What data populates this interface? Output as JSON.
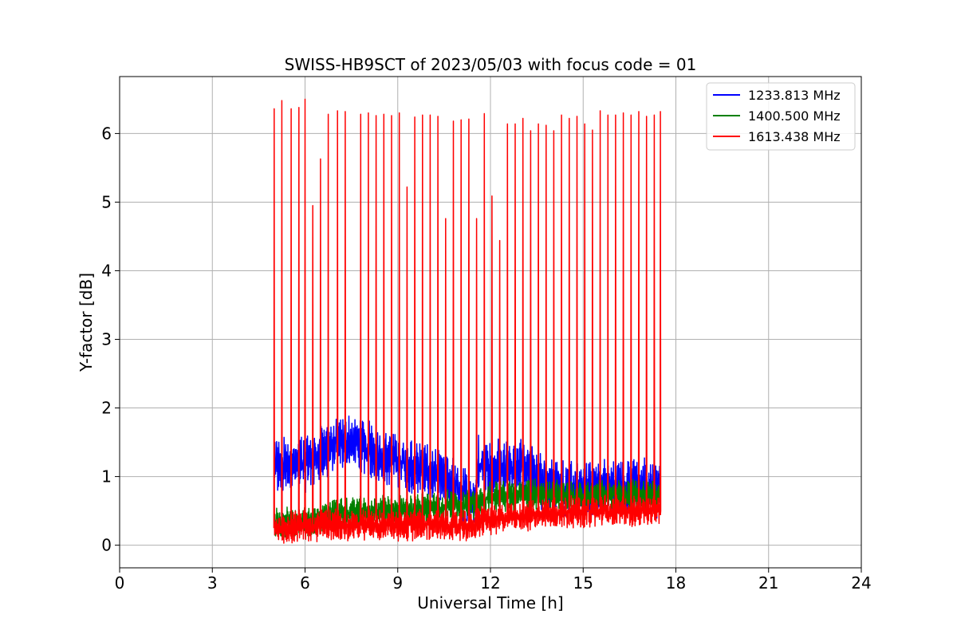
{
  "chart_data": {
    "type": "line",
    "title": "SWISS-HB9SCT of 2023/05/03 with focus code = 01",
    "xlabel": "Universal Time [h]",
    "ylabel": "Y-factor [dB]",
    "xlim": [
      0,
      24
    ],
    "ylim": [
      -0.33,
      6.83
    ],
    "x_ticks": [
      0,
      3,
      6,
      9,
      12,
      15,
      18,
      21,
      24
    ],
    "y_ticks": [
      0,
      1,
      2,
      3,
      4,
      5,
      6
    ],
    "grid": true,
    "legend_position": "top-right",
    "series": [
      {
        "name": "1233.813 MHz",
        "color": "#0000ff",
        "x_range": [
          5.0,
          17.5
        ],
        "baseline_points": [
          [
            5.0,
            1.15
          ],
          [
            6.0,
            1.2
          ],
          [
            7.0,
            1.45
          ],
          [
            7.5,
            1.5
          ],
          [
            8.5,
            1.3
          ],
          [
            9.5,
            1.15
          ],
          [
            10.5,
            0.95
          ],
          [
            11.5,
            0.65
          ],
          [
            11.6,
            1.2
          ],
          [
            12.5,
            1.1
          ],
          [
            13.0,
            1.15
          ],
          [
            13.5,
            0.95
          ],
          [
            14.5,
            0.8
          ],
          [
            15.5,
            0.85
          ],
          [
            16.5,
            0.85
          ],
          [
            17.5,
            0.82
          ]
        ],
        "noise_amplitude": 0.22
      },
      {
        "name": "1400.500 MHz",
        "color": "#008000",
        "x_range": [
          5.0,
          17.5
        ],
        "baseline_points": [
          [
            5.0,
            0.3
          ],
          [
            6.0,
            0.35
          ],
          [
            7.0,
            0.45
          ],
          [
            8.0,
            0.5
          ],
          [
            9.0,
            0.5
          ],
          [
            10.0,
            0.55
          ],
          [
            11.5,
            0.6
          ],
          [
            12.0,
            0.7
          ],
          [
            13.0,
            0.75
          ],
          [
            14.0,
            0.72
          ],
          [
            15.0,
            0.7
          ],
          [
            16.0,
            0.72
          ],
          [
            17.5,
            0.72
          ]
        ],
        "noise_amplitude": 0.12
      },
      {
        "name": "1613.438 MHz",
        "color": "#ff0000",
        "x_range": [
          5.0,
          17.5
        ],
        "baseline_points": [
          [
            5.0,
            0.25
          ],
          [
            6.0,
            0.28
          ],
          [
            7.0,
            0.3
          ],
          [
            8.0,
            0.3
          ],
          [
            9.0,
            0.28
          ],
          [
            10.0,
            0.3
          ],
          [
            11.5,
            0.28
          ],
          [
            11.6,
            0.35
          ],
          [
            12.5,
            0.4
          ],
          [
            13.5,
            0.45
          ],
          [
            14.5,
            0.48
          ],
          [
            15.5,
            0.5
          ],
          [
            16.5,
            0.5
          ],
          [
            17.5,
            0.5
          ]
        ],
        "noise_amplitude": 0.12,
        "spikes": [
          [
            5.0,
            6.36
          ],
          [
            5.25,
            6.48
          ],
          [
            5.55,
            6.36
          ],
          [
            5.8,
            6.38
          ],
          [
            6.0,
            6.5
          ],
          [
            6.25,
            4.95
          ],
          [
            6.5,
            5.63
          ],
          [
            6.75,
            6.28
          ],
          [
            7.05,
            6.33
          ],
          [
            7.3,
            6.32
          ],
          [
            7.8,
            6.28
          ],
          [
            8.05,
            6.3
          ],
          [
            8.3,
            6.26
          ],
          [
            8.55,
            6.28
          ],
          [
            8.8,
            6.26
          ],
          [
            9.05,
            6.3
          ],
          [
            9.3,
            5.22
          ],
          [
            9.55,
            6.24
          ],
          [
            9.8,
            6.27
          ],
          [
            10.05,
            6.27
          ],
          [
            10.3,
            6.25
          ],
          [
            10.55,
            4.76
          ],
          [
            10.8,
            6.18
          ],
          [
            11.05,
            6.2
          ],
          [
            11.3,
            6.21
          ],
          [
            11.55,
            4.76
          ],
          [
            11.8,
            6.29
          ],
          [
            12.05,
            5.09
          ],
          [
            12.3,
            4.44
          ],
          [
            12.55,
            6.14
          ],
          [
            12.8,
            6.14
          ],
          [
            13.05,
            6.22
          ],
          [
            13.3,
            6.04
          ],
          [
            13.55,
            6.14
          ],
          [
            13.8,
            6.12
          ],
          [
            14.05,
            6.04
          ],
          [
            14.3,
            6.27
          ],
          [
            14.55,
            6.22
          ],
          [
            14.8,
            6.25
          ],
          [
            15.05,
            6.14
          ],
          [
            15.3,
            6.05
          ],
          [
            15.55,
            6.33
          ],
          [
            15.8,
            6.27
          ],
          [
            16.05,
            6.27
          ],
          [
            16.3,
            6.3
          ],
          [
            16.55,
            6.27
          ],
          [
            16.8,
            6.32
          ],
          [
            17.05,
            6.25
          ],
          [
            17.3,
            6.27
          ],
          [
            17.5,
            6.32
          ]
        ]
      }
    ]
  }
}
